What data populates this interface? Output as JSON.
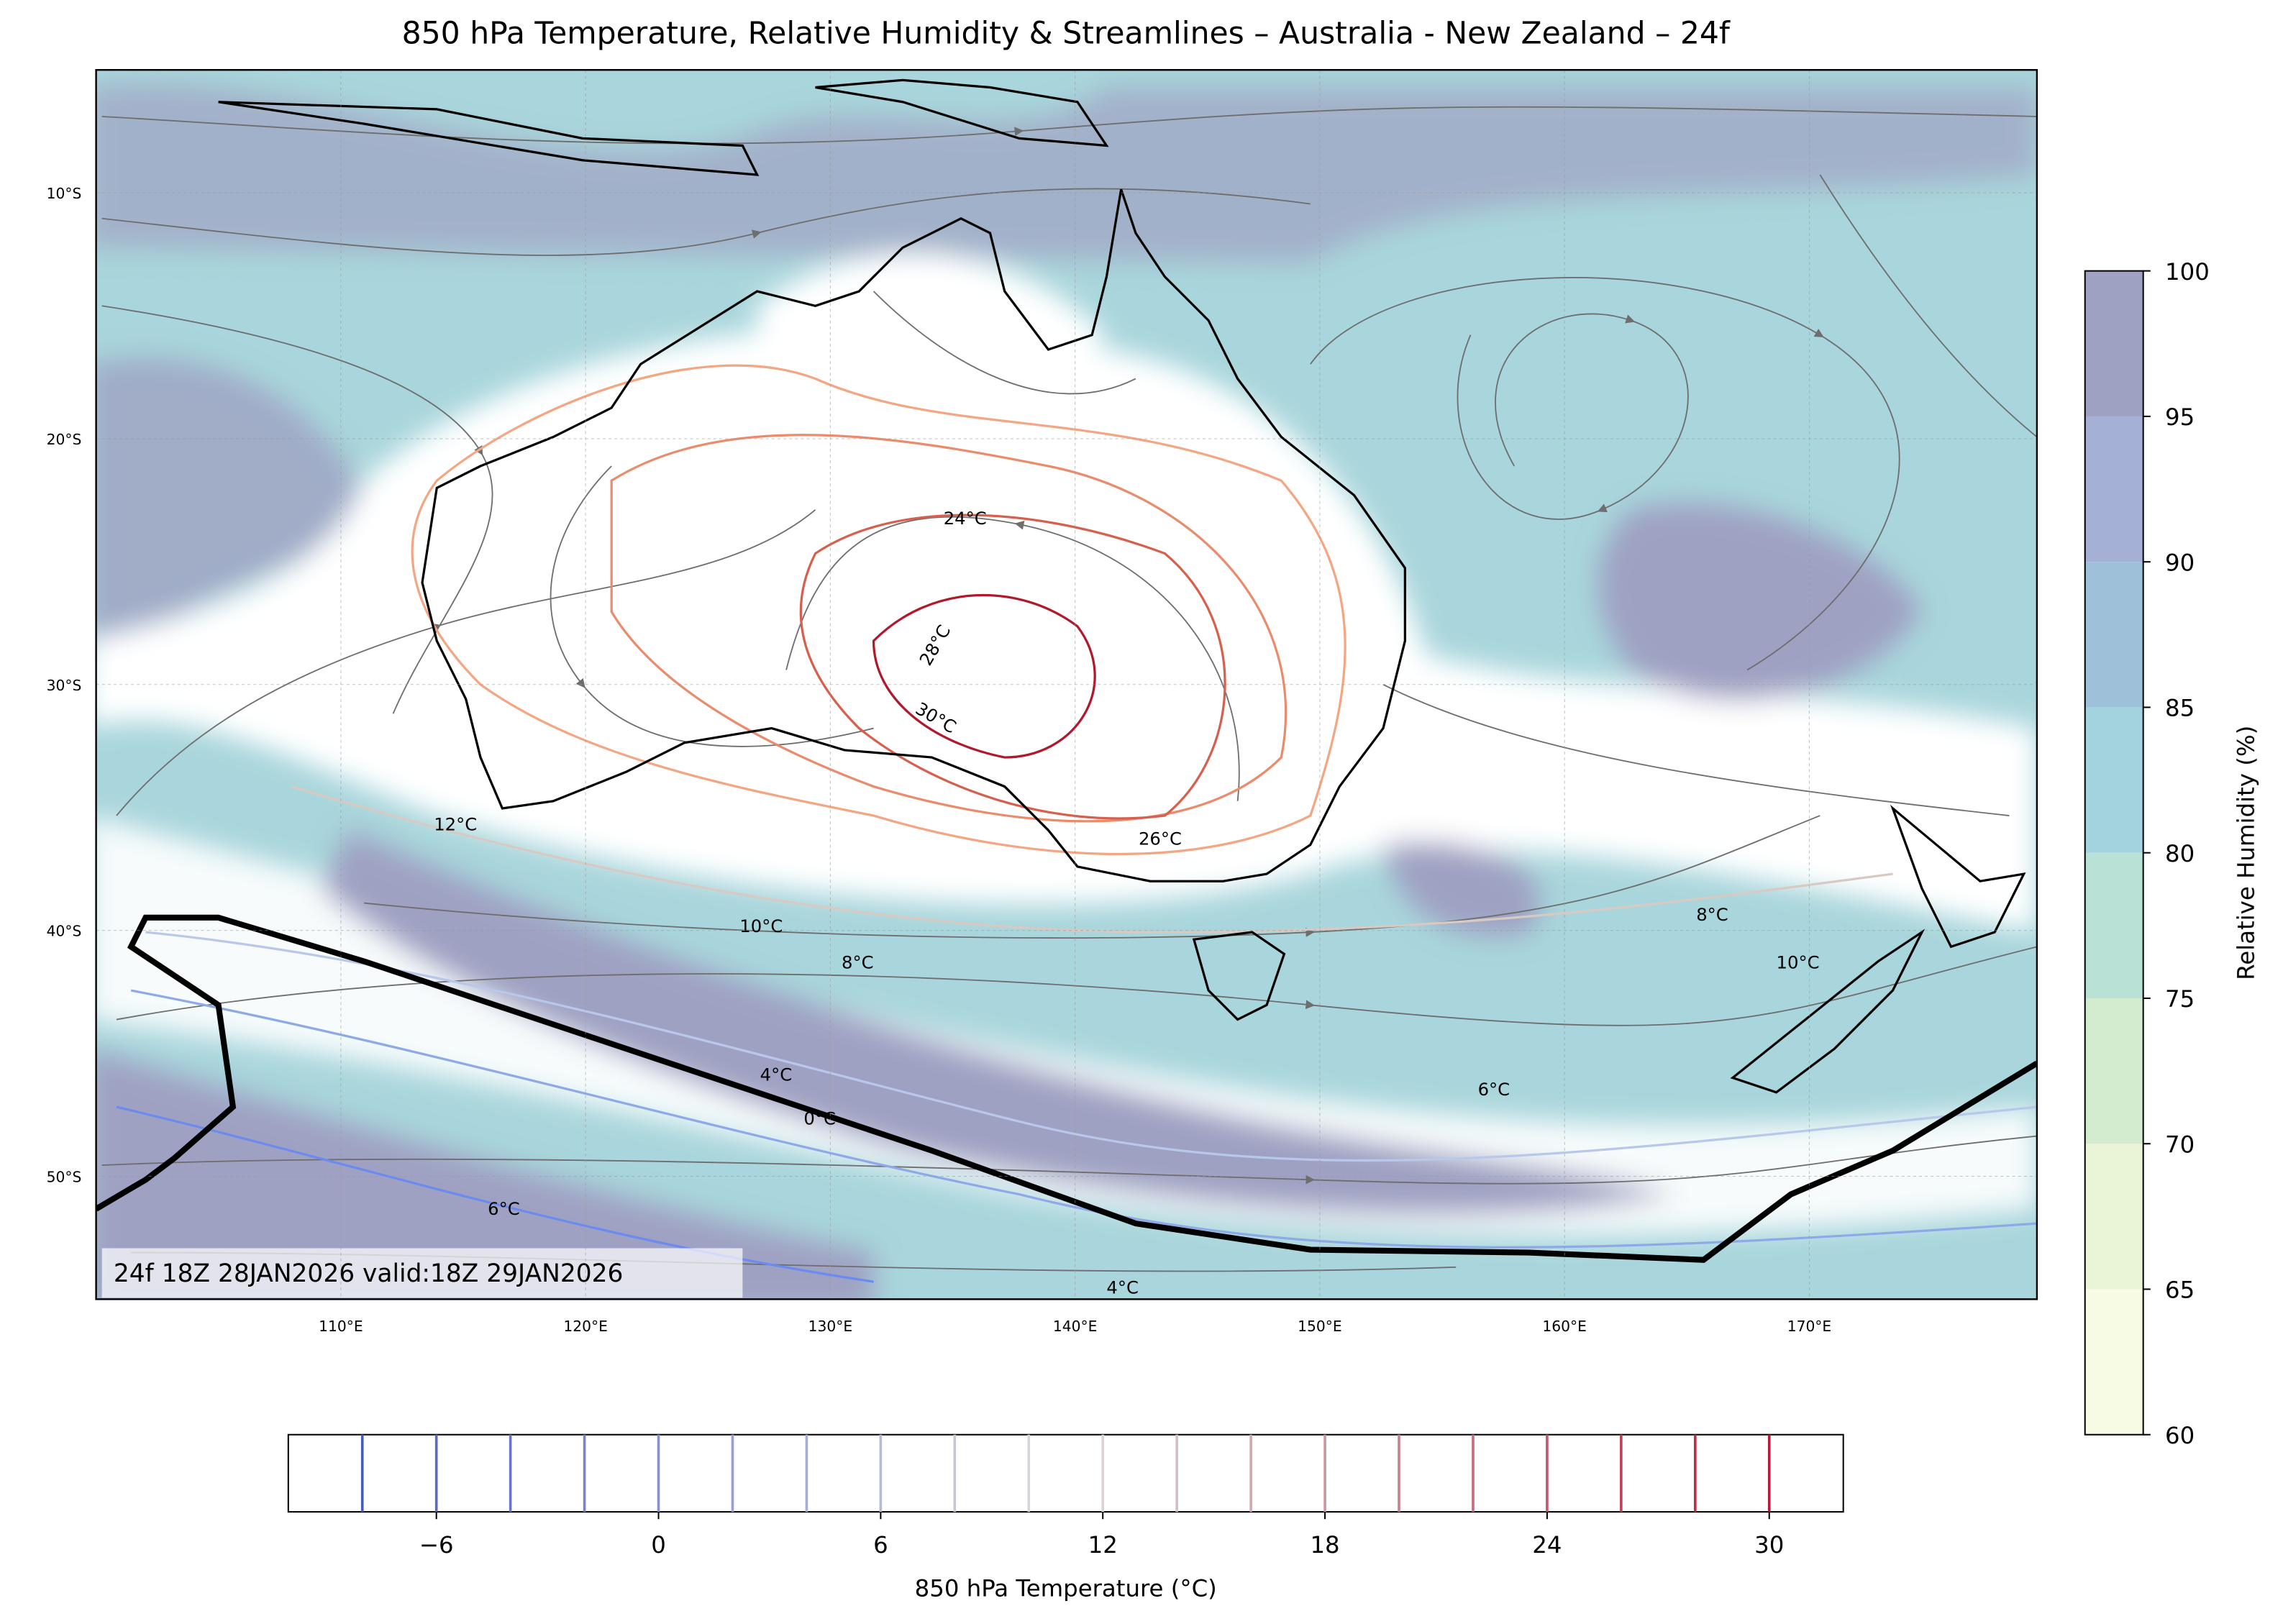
{
  "title": "850 hPa Temperature, Relative Humidity & Streamlines – Australia - New Zealand – 24f",
  "map": {
    "lon_range": [
      100,
      179.3
    ],
    "lat_range": [
      -55,
      -5
    ],
    "lon_ticks": [
      {
        "value": 110,
        "label": "110°E"
      },
      {
        "value": 120,
        "label": "120°E"
      },
      {
        "value": 130,
        "label": "130°E"
      },
      {
        "value": 140,
        "label": "140°E"
      },
      {
        "value": 150,
        "label": "150°E"
      },
      {
        "value": 160,
        "label": "160°E"
      },
      {
        "value": 170,
        "label": "170°E"
      }
    ],
    "lat_ticks": [
      {
        "value": -10,
        "label": "10°S"
      },
      {
        "value": -20,
        "label": "20°S"
      },
      {
        "value": -30,
        "label": "30°S"
      },
      {
        "value": -40,
        "label": "40°S"
      },
      {
        "value": -50,
        "label": "50°S"
      }
    ],
    "contour_labels": [
      "24°C",
      "28°C",
      "30°C",
      "26°C",
      "12°C",
      "10°C",
      "8°C",
      "6°C",
      "4°C",
      "0°C",
      "6°C",
      "4°C",
      "8°C",
      "10°C"
    ],
    "timestamp": "24f 18Z 28JAN2026 valid:18Z 29JAN2026"
  },
  "rh_colorbar": {
    "label": "Relative Humidity (%)",
    "range": [
      60,
      100
    ],
    "ticks": [
      60,
      65,
      70,
      75,
      80,
      85,
      90,
      95,
      100
    ],
    "colors": [
      "#f7fbe4",
      "#eaf4d6",
      "#d3ecd0",
      "#b9e1d6",
      "#a2d3de",
      "#9ec1d9",
      "#a5b0d6",
      "#9fa1c2"
    ]
  },
  "temp_colorbar": {
    "label": "850 hPa Temperature (°C)",
    "range": [
      -10,
      32
    ],
    "ticks": [
      {
        "value": -6,
        "label": "−6"
      },
      0,
      6,
      12,
      18,
      24,
      30
    ],
    "levels": [
      -8,
      -6,
      -4,
      -2,
      0,
      2,
      4,
      6,
      8,
      10,
      12,
      14,
      16,
      18,
      20,
      22,
      24,
      26,
      28,
      30
    ]
  }
}
